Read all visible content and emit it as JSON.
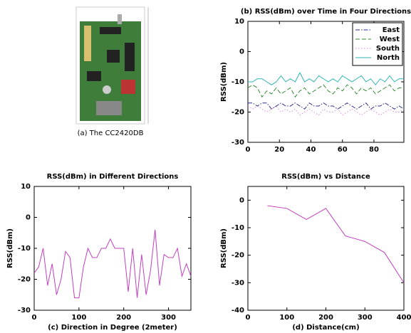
{
  "figure": {
    "photo_caption": "(a) The CC2420DB"
  },
  "chart_data": [
    {
      "type": "line",
      "title": "(b) RSS(dBm) over Time in Four Directions",
      "y_label": "RSS(dBm)",
      "x": [
        0,
        3,
        6,
        9,
        12,
        15,
        18,
        21,
        24,
        27,
        30,
        33,
        36,
        39,
        42,
        45,
        48,
        51,
        54,
        57,
        60,
        63,
        66,
        69,
        72,
        75,
        78,
        81,
        84,
        87,
        90,
        93,
        96,
        99
      ],
      "xlim": [
        0,
        99
      ],
      "xticks": [
        0,
        20,
        40,
        60,
        80
      ],
      "ylim": [
        -30,
        10
      ],
      "yticks": [
        -30,
        -20,
        -10,
        0,
        10
      ],
      "legend": "top-right",
      "series": [
        {
          "name": "East",
          "color": "#2b2b8c",
          "linestyle": "dashdot",
          "values": [
            -17,
            -17,
            -18,
            -17,
            -17,
            -19,
            -18,
            -17,
            -18,
            -18,
            -17,
            -18,
            -19,
            -17,
            -18,
            -18,
            -17,
            -18,
            -18,
            -19,
            -18,
            -17,
            -18,
            -19,
            -18,
            -17,
            -19,
            -18,
            -18,
            -17,
            -18,
            -19,
            -18,
            -19
          ]
        },
        {
          "name": "West",
          "color": "#2e8b2e",
          "linestyle": "dashed",
          "values": [
            -12,
            -11,
            -12,
            -15,
            -13,
            -14,
            -12,
            -14,
            -13,
            -12,
            -15,
            -13,
            -12,
            -14,
            -13,
            -12,
            -11,
            -13,
            -14,
            -12,
            -13,
            -11,
            -12,
            -14,
            -12,
            -13,
            -12,
            -14,
            -13,
            -12,
            -11,
            -13,
            -12,
            -12
          ]
        },
        {
          "name": "South",
          "color": "#d98ad9",
          "linestyle": "dotted",
          "values": [
            -18,
            -19,
            -18,
            -19,
            -20,
            -19,
            -18,
            -20,
            -19,
            -20,
            -19,
            -21,
            -20,
            -19,
            -20,
            -21,
            -19,
            -20,
            -20,
            -19,
            -21,
            -20,
            -19,
            -20,
            -21,
            -20,
            -19,
            -20,
            -21,
            -20,
            -19,
            -20,
            -20,
            -19
          ]
        },
        {
          "name": "North",
          "color": "#2bb3b3",
          "linestyle": "solid",
          "values": [
            -10,
            -10,
            -9,
            -9,
            -10,
            -11,
            -10,
            -8,
            -10,
            -9,
            -10,
            -7,
            -10,
            -9,
            -10,
            -8,
            -9,
            -10,
            -9,
            -10,
            -8,
            -9,
            -10,
            -9,
            -8,
            -10,
            -9,
            -11,
            -9,
            -10,
            -8,
            -10,
            -9,
            -9
          ]
        }
      ]
    },
    {
      "type": "line",
      "title": "RSS(dBm) in Different Directions",
      "y_label": "RSS(dBm)",
      "x_label": "(c) Direction in Degree (2meter)",
      "x": [
        0,
        10,
        20,
        30,
        40,
        50,
        60,
        70,
        80,
        90,
        100,
        110,
        120,
        130,
        140,
        150,
        160,
        170,
        180,
        190,
        200,
        210,
        220,
        230,
        240,
        250,
        260,
        270,
        280,
        290,
        300,
        310,
        320,
        330,
        340,
        350
      ],
      "xlim": [
        0,
        350
      ],
      "xticks": [
        0,
        100,
        200,
        300
      ],
      "ylim": [
        -30,
        10
      ],
      "yticks": [
        -30,
        -20,
        -10,
        0,
        10
      ],
      "series": [
        {
          "color": "#c040c0",
          "linestyle": "solid",
          "values": [
            -18,
            -16,
            -10,
            -22,
            -15,
            -25,
            -20,
            -11,
            -13,
            -26,
            -26,
            -16,
            -10,
            -13,
            -13,
            -10,
            -10,
            -7,
            -10,
            -10,
            -10,
            -24,
            -10,
            -26,
            -12,
            -25,
            -17,
            -4,
            -22,
            -12,
            -13,
            -13,
            -10,
            -19,
            -15,
            -19
          ]
        }
      ]
    },
    {
      "type": "line",
      "title": "RSS(dBm) vs Distance",
      "y_label": "RSS(dBm)",
      "x_label": "(d) Distance(cm)",
      "x": [
        50,
        100,
        150,
        200,
        250,
        300,
        350,
        400
      ],
      "xlim": [
        0,
        400
      ],
      "xticks": [
        0,
        100,
        200,
        300,
        400
      ],
      "ylim": [
        -40,
        5
      ],
      "yticks": [
        -40,
        -30,
        -20,
        -10,
        0
      ],
      "series": [
        {
          "color": "#c040c0",
          "linestyle": "solid",
          "values": [
            -2,
            -3,
            -7,
            -3,
            -13,
            -15,
            -19,
            -30
          ]
        }
      ]
    }
  ]
}
